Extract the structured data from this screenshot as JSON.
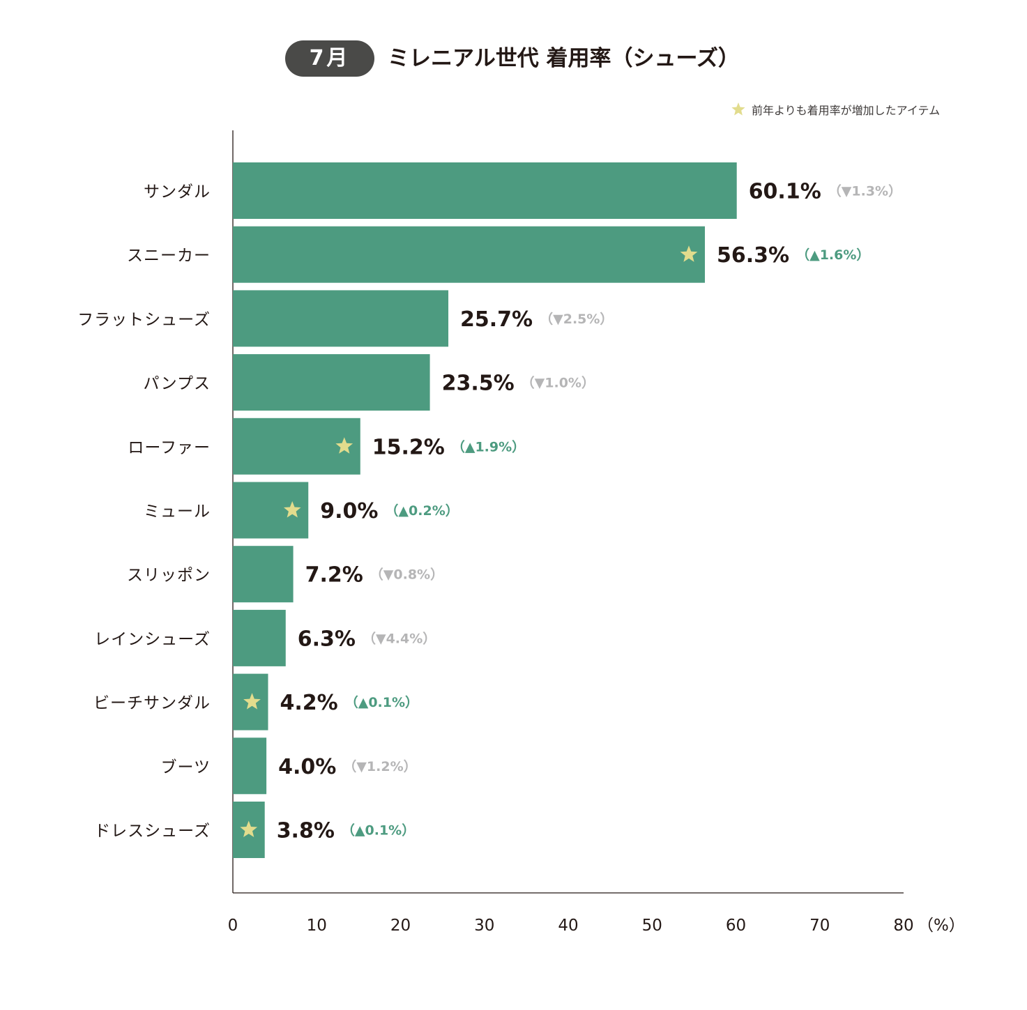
{
  "header": {
    "month": "7月",
    "title": "ミレニアル世代 着用率（シューズ）"
  },
  "legend": {
    "label": "前年よりも着用率が増加したアイテム",
    "star_color": "#e2dc8d"
  },
  "colors": {
    "bar": "#4d9b80",
    "increase": "#4d9b80",
    "decrease": "#b5b5b6",
    "value_text": "#231815",
    "axis": "#231815"
  },
  "chart_data": {
    "type": "bar",
    "orientation": "horizontal",
    "title": "ミレニアル世代 着用率（シューズ）",
    "xlabel": "（%）",
    "ylabel": "",
    "xlim": [
      0,
      80
    ],
    "xticks": [
      0,
      10,
      20,
      30,
      40,
      50,
      60,
      70,
      80
    ],
    "grid": false,
    "legend_position": "top-right",
    "categories": [
      "サンダル",
      "スニーカー",
      "フラットシューズ",
      "パンプス",
      "ローファー",
      "ミュール",
      "スリッポン",
      "レインシューズ",
      "ビーチサンダル",
      "ブーツ",
      "ドレスシューズ"
    ],
    "values": [
      60.1,
      56.3,
      25.7,
      23.5,
      15.2,
      9.0,
      7.2,
      6.3,
      4.2,
      4.0,
      3.8
    ],
    "value_labels": [
      "60.1%",
      "56.3%",
      "25.7%",
      "23.5%",
      "15.2%",
      "9.0%",
      "7.2%",
      "6.3%",
      "4.2%",
      "4.0%",
      "3.8%"
    ],
    "change_labels": [
      "（▼1.3%）",
      "（▲1.6%）",
      "（▼2.5%）",
      "（▼1.0%）",
      "（▲1.9%）",
      "（▲0.2%）",
      "（▼0.8%）",
      "（▼4.4%）",
      "（▲0.1%）",
      "（▼1.2%）",
      "（▲0.1%）"
    ],
    "change_values": [
      -1.3,
      1.6,
      -2.5,
      -1.0,
      1.9,
      0.2,
      -0.8,
      -4.4,
      0.1,
      -1.2,
      0.1
    ],
    "increased": [
      false,
      true,
      false,
      false,
      true,
      true,
      false,
      false,
      true,
      false,
      true
    ]
  }
}
